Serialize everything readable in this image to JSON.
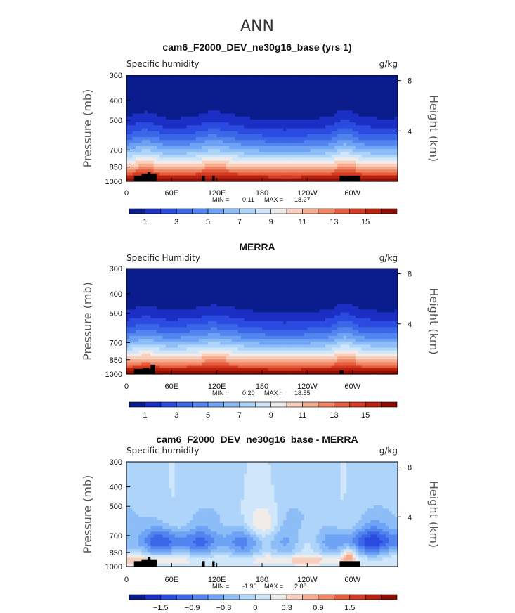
{
  "figure": {
    "title": "ANN"
  },
  "palettes": {
    "abs": [
      "#0b1c8c",
      "#1c2fc4",
      "#2b4ae0",
      "#3a66e8",
      "#5284ef",
      "#6ea2f4",
      "#8cbdf7",
      "#aed4fa",
      "#cfe6fb",
      "#f2ece8",
      "#f8cfbd",
      "#f6ad8f",
      "#f08564",
      "#e55d3c",
      "#d43a20",
      "#b9200e",
      "#8e0f05"
    ],
    "diff": [
      "#0b1c8c",
      "#1c2fc4",
      "#2b4ae0",
      "#3a66e8",
      "#5284ef",
      "#6ea2f4",
      "#8cbdf7",
      "#aed4fa",
      "#cfe6fb",
      "#f2ece8",
      "#f8cfbd",
      "#f6ad8f",
      "#f08564",
      "#e55d3c",
      "#d43a20",
      "#b9200e",
      "#8e0f05"
    ]
  },
  "chart_data": [
    {
      "type": "heatmap",
      "title": "cam6_F2000_DEV_ne30g16_base (yrs 1)",
      "subtitle_left": "Specific humidity",
      "units": "g/kg",
      "ylabel": "Pressure (mb)",
      "ylabel_right": "Height (km)",
      "xticks": [
        "0",
        "60E",
        "120E",
        "180",
        "120W",
        "60W"
      ],
      "xtick_lons": [
        0,
        60,
        120,
        180,
        240,
        300
      ],
      "yticks": [
        "300",
        "400",
        "500",
        "700",
        "850",
        "1000"
      ],
      "ytick_p": [
        300,
        400,
        500,
        700,
        850,
        1000
      ],
      "height_ticks": [
        "8",
        "4"
      ],
      "height_km": [
        8,
        4
      ],
      "xlim": [
        0,
        360
      ],
      "ylim": [
        1000,
        300
      ],
      "stats": {
        "min_label": "MIN =",
        "min": "0.11",
        "max_label": "MAX =",
        "max": "18.27"
      },
      "colorbar": {
        "palette": "abs",
        "labels": [
          "1",
          "3",
          "5",
          "7",
          "9",
          "11",
          "13",
          "15"
        ],
        "label_index": [
          1,
          3,
          5,
          7,
          9,
          11,
          13,
          15
        ]
      },
      "field": "model",
      "surface_profile": "model"
    },
    {
      "type": "heatmap",
      "title": "MERRA",
      "subtitle_left": "Specific Humidity",
      "units": "g/kg",
      "ylabel": "Pressure (mb)",
      "ylabel_right": "Height (km)",
      "xticks": [
        "0",
        "60E",
        "120E",
        "180",
        "120W",
        "60W"
      ],
      "xtick_lons": [
        0,
        60,
        120,
        180,
        240,
        300
      ],
      "yticks": [
        "300",
        "400",
        "500",
        "700",
        "850",
        "1000"
      ],
      "ytick_p": [
        300,
        400,
        500,
        700,
        850,
        1000
      ],
      "height_ticks": [
        "8",
        "4"
      ],
      "height_km": [
        8,
        4
      ],
      "xlim": [
        0,
        360
      ],
      "ylim": [
        1000,
        300
      ],
      "stats": {
        "min_label": "MIN =",
        "min": "0.20",
        "max_label": "MAX =",
        "max": "18.55"
      },
      "colorbar": {
        "palette": "abs",
        "labels": [
          "1",
          "3",
          "5",
          "7",
          "9",
          "11",
          "13",
          "15"
        ],
        "label_index": [
          1,
          3,
          5,
          7,
          9,
          11,
          13,
          15
        ]
      },
      "field": "obs",
      "surface_profile": "obs"
    },
    {
      "type": "heatmap",
      "title": "cam6_F2000_DEV_ne30g16_base - MERRA",
      "subtitle_left": "Specific humidity",
      "units": "g/kg",
      "ylabel": "Pressure (mb)",
      "ylabel_right": "Height (km)",
      "xticks": [
        "0",
        "60E",
        "120E",
        "180",
        "120W",
        "60W"
      ],
      "xtick_lons": [
        0,
        60,
        120,
        180,
        240,
        300
      ],
      "yticks": [
        "300",
        "400",
        "500",
        "700",
        "850",
        "1000"
      ],
      "ytick_p": [
        300,
        400,
        500,
        700,
        850,
        1000
      ],
      "height_ticks": [
        "8",
        "4"
      ],
      "height_km": [
        8,
        4
      ],
      "xlim": [
        0,
        360
      ],
      "ylim": [
        1000,
        300
      ],
      "stats": {
        "min_label": "MIN =",
        "min": "-1.90",
        "max_label": "MAX =",
        "max": "2.88"
      },
      "colorbar": {
        "palette": "diff",
        "labels": [
          "−1.5",
          "−0.9",
          "−0.3",
          "0",
          "0.3",
          "0.9",
          "1.5"
        ],
        "label_index": [
          2,
          4,
          6,
          8,
          10,
          12,
          14
        ]
      },
      "field": "diff",
      "surface_profile": "model"
    }
  ],
  "surface": {
    "model": [
      [
        10,
        40,
        1000,
        940
      ],
      [
        20,
        40,
        1000,
        920
      ],
      [
        28,
        32,
        1000,
        900
      ],
      [
        100,
        104,
        1000,
        940
      ],
      [
        114,
        117,
        1000,
        940
      ],
      [
        283,
        310,
        1000,
        940
      ]
    ],
    "obs": [
      [
        10,
        35,
        1000,
        945
      ],
      [
        22,
        30,
        1000,
        935
      ],
      [
        32,
        38,
        1000,
        900
      ],
      [
        283,
        288,
        1000,
        960
      ]
    ]
  }
}
